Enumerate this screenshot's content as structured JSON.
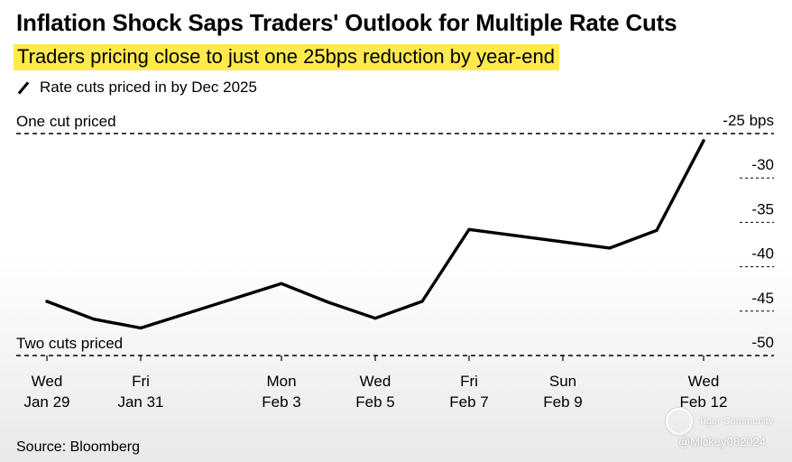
{
  "title": "Inflation Shock Saps Traders' Outlook for Multiple Rate Cuts",
  "subtitle": "Traders pricing close to just one 25bps reduction by year-end",
  "source": "Source: Bloomberg",
  "watermark": {
    "brand": "Tiger Community",
    "handle": "@Mickey082024"
  },
  "colors": {
    "line": "#000000",
    "highlight": "#ffe94f"
  },
  "chart_data": {
    "type": "line",
    "legend": "Rate cuts priced in by Dec 2025",
    "ylim": [
      -50,
      -25
    ],
    "y_ticks": [
      {
        "value": -25,
        "label": "-25 bps"
      },
      {
        "value": -30,
        "label": "-30"
      },
      {
        "value": -35,
        "label": "-35"
      },
      {
        "value": -40,
        "label": "-40"
      },
      {
        "value": -45,
        "label": "-45"
      },
      {
        "value": -50,
        "label": "-50"
      }
    ],
    "reference_lines": [
      {
        "value": -25,
        "label": "One cut priced"
      },
      {
        "value": -50,
        "label": "Two cuts priced"
      }
    ],
    "x_ticks": [
      {
        "date": "2025-01-29",
        "day": "Wed",
        "label": "Jan 29"
      },
      {
        "date": "2025-01-31",
        "day": "Fri",
        "label": "Jan 31"
      },
      {
        "date": "2025-02-03",
        "day": "Mon",
        "label": "Feb 3"
      },
      {
        "date": "2025-02-05",
        "day": "Wed",
        "label": "Feb 5"
      },
      {
        "date": "2025-02-07",
        "day": "Fri",
        "label": "Feb 7"
      },
      {
        "date": "2025-02-09",
        "day": "Sun",
        "label": "Feb 9"
      },
      {
        "date": "2025-02-12",
        "day": "Wed",
        "label": "Feb 12"
      }
    ],
    "x": [
      "2025-01-29",
      "2025-01-30",
      "2025-01-31",
      "2025-02-03",
      "2025-02-04",
      "2025-02-05",
      "2025-02-06",
      "2025-02-07",
      "2025-02-10",
      "2025-02-11",
      "2025-02-12"
    ],
    "series": [
      {
        "values": [
          -43.9,
          -45.9,
          -46.9,
          -41.9,
          -44.0,
          -45.8,
          -43.9,
          -35.8,
          -37.9,
          -35.9,
          -25.8
        ]
      }
    ]
  }
}
